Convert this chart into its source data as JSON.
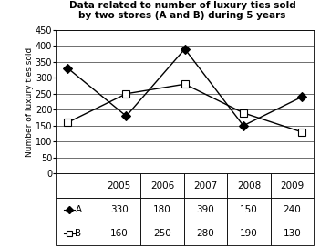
{
  "title_line1": "Data related to number of luxury ties sold",
  "title_line2": "by two stores (A and B) during 5 years",
  "years": [
    2005,
    2006,
    2007,
    2008,
    2009
  ],
  "store_A": [
    330,
    180,
    390,
    150,
    240
  ],
  "store_B": [
    160,
    250,
    280,
    190,
    130
  ],
  "ylabel": "Number of luxury ties sold",
  "ylim": [
    0,
    450
  ],
  "yticks": [
    0,
    50,
    100,
    150,
    200,
    250,
    300,
    350,
    400,
    450
  ],
  "color_line": "#000000",
  "table_header": [
    "2005",
    "2006",
    "2007",
    "2008",
    "2009"
  ],
  "table_row_A": [
    "330",
    "180",
    "390",
    "150",
    "240"
  ],
  "table_row_B": [
    "160",
    "250",
    "280",
    "190",
    "130"
  ],
  "label_A": "A",
  "label_B": "B",
  "title_fontsize": 7.5,
  "tick_fontsize": 7,
  "ylabel_fontsize": 6.5,
  "table_fontsize": 7.5
}
